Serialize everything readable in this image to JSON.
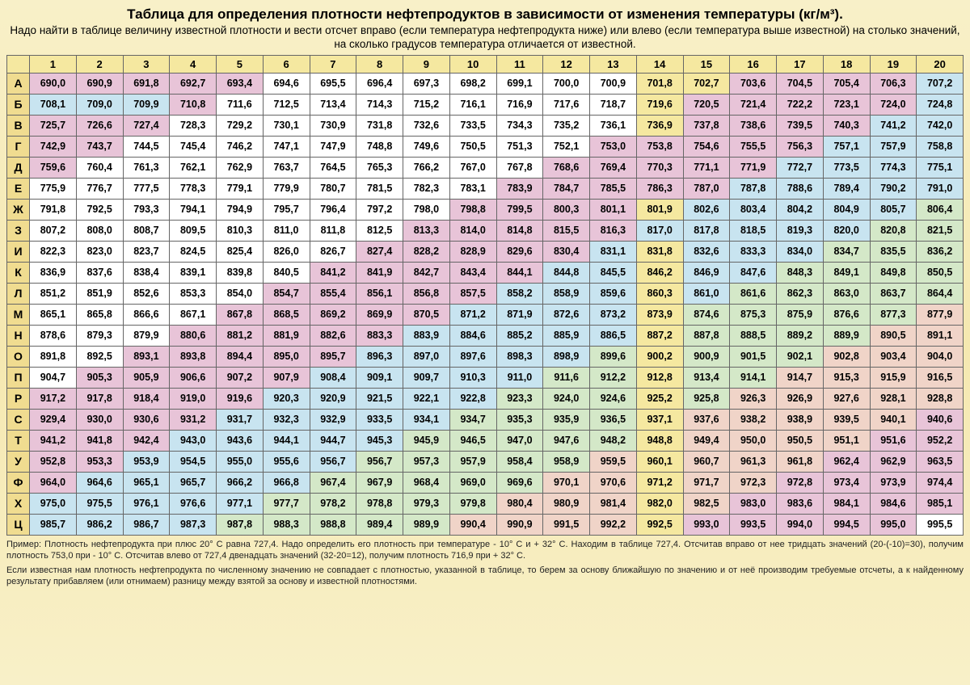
{
  "title": "Таблица для определения плотности нефтепродуктов в зависимости от изменения температуры (кг/м³).",
  "subtitle": "Надо найти в таблице величину известной плотности и вести отсчет вправо (если температура нефтепродукта ниже) или влево (если температура выше известной) на столько значений, на сколько градусов температура отличается от известной.",
  "colHeaders": [
    "1",
    "2",
    "3",
    "4",
    "5",
    "6",
    "7",
    "8",
    "9",
    "10",
    "11",
    "12",
    "13",
    "14",
    "15",
    "16",
    "17",
    "18",
    "19",
    "20"
  ],
  "rowHeaders": [
    "А",
    "Б",
    "В",
    "Г",
    "Д",
    "Е",
    "Ж",
    "З",
    "И",
    "К",
    "Л",
    "М",
    "Н",
    "О",
    "П",
    "Р",
    "С",
    "Т",
    "У",
    "Ф",
    "Х",
    "Ц"
  ],
  "colors": {
    "pink": "#e8c4d8",
    "blue": "#c8e4f0",
    "cream": "#faf4e0",
    "yellow": "#f5e8a0",
    "green": "#d4e8c8",
    "salmon": "#f0d4c8",
    "white": "#ffffff"
  },
  "rows": [
    {
      "v": [
        "690,0",
        "690,9",
        "691,8",
        "692,7",
        "693,4",
        "694,6",
        "695,5",
        "696,4",
        "697,3",
        "698,2",
        "699,1",
        "700,0",
        "700,9",
        "701,8",
        "702,7",
        "703,6",
        "704,5",
        "705,4",
        "706,3",
        "707,2"
      ],
      "c": [
        "pink",
        "pink",
        "pink",
        "pink",
        "pink",
        "white",
        "white",
        "white",
        "white",
        "white",
        "white",
        "white",
        "white",
        "yellow",
        "yellow",
        "pink",
        "pink",
        "pink",
        "pink",
        "blue"
      ]
    },
    {
      "v": [
        "708,1",
        "709,0",
        "709,9",
        "710,8",
        "711,6",
        "712,5",
        "713,4",
        "714,3",
        "715,2",
        "716,1",
        "716,9",
        "717,6",
        "718,7",
        "719,6",
        "720,5",
        "721,4",
        "722,2",
        "723,1",
        "724,0",
        "724,8"
      ],
      "c": [
        "blue",
        "blue",
        "blue",
        "pink",
        "white",
        "white",
        "white",
        "white",
        "white",
        "white",
        "white",
        "white",
        "white",
        "yellow",
        "pink",
        "pink",
        "pink",
        "pink",
        "pink",
        "blue"
      ]
    },
    {
      "v": [
        "725,7",
        "726,6",
        "727,4",
        "728,3",
        "729,2",
        "730,1",
        "730,9",
        "731,8",
        "732,6",
        "733,5",
        "734,3",
        "735,2",
        "736,1",
        "736,9",
        "737,8",
        "738,6",
        "739,5",
        "740,3",
        "741,2",
        "742,0"
      ],
      "c": [
        "pink",
        "pink",
        "pink",
        "white",
        "white",
        "white",
        "white",
        "white",
        "white",
        "white",
        "white",
        "white",
        "white",
        "yellow",
        "pink",
        "pink",
        "pink",
        "pink",
        "blue",
        "blue"
      ]
    },
    {
      "v": [
        "742,9",
        "743,7",
        "744,5",
        "745,4",
        "746,2",
        "747,1",
        "747,9",
        "748,8",
        "749,6",
        "750,5",
        "751,3",
        "752,1",
        "753,0",
        "753,8",
        "754,6",
        "755,5",
        "756,3",
        "757,1",
        "757,9",
        "758,8"
      ],
      "c": [
        "pink",
        "pink",
        "white",
        "white",
        "white",
        "white",
        "white",
        "white",
        "white",
        "white",
        "white",
        "white",
        "pink",
        "pink",
        "pink",
        "pink",
        "pink",
        "blue",
        "blue",
        "blue"
      ]
    },
    {
      "v": [
        "759,6",
        "760,4",
        "761,3",
        "762,1",
        "762,9",
        "763,7",
        "764,5",
        "765,3",
        "766,2",
        "767,0",
        "767,8",
        "768,6",
        "769,4",
        "770,3",
        "771,1",
        "771,9",
        "772,7",
        "773,5",
        "774,3",
        "775,1"
      ],
      "c": [
        "pink",
        "white",
        "white",
        "white",
        "white",
        "white",
        "white",
        "white",
        "white",
        "white",
        "white",
        "pink",
        "pink",
        "pink",
        "pink",
        "pink",
        "blue",
        "blue",
        "blue",
        "blue"
      ]
    },
    {
      "v": [
        "775,9",
        "776,7",
        "777,5",
        "778,3",
        "779,1",
        "779,9",
        "780,7",
        "781,5",
        "782,3",
        "783,1",
        "783,9",
        "784,7",
        "785,5",
        "786,3",
        "787,0",
        "787,8",
        "788,6",
        "789,4",
        "790,2",
        "791,0"
      ],
      "c": [
        "white",
        "white",
        "white",
        "white",
        "white",
        "white",
        "white",
        "white",
        "white",
        "white",
        "pink",
        "pink",
        "pink",
        "pink",
        "pink",
        "blue",
        "blue",
        "blue",
        "blue",
        "blue"
      ]
    },
    {
      "v": [
        "791,8",
        "792,5",
        "793,3",
        "794,1",
        "794,9",
        "795,7",
        "796,4",
        "797,2",
        "798,0",
        "798,8",
        "799,5",
        "800,3",
        "801,1",
        "801,9",
        "802,6",
        "803,4",
        "804,2",
        "804,9",
        "805,7",
        "806,4"
      ],
      "c": [
        "white",
        "white",
        "white",
        "white",
        "white",
        "white",
        "white",
        "white",
        "white",
        "pink",
        "pink",
        "pink",
        "pink",
        "yellow",
        "blue",
        "blue",
        "blue",
        "blue",
        "blue",
        "green"
      ]
    },
    {
      "v": [
        "807,2",
        "808,0",
        "808,7",
        "809,5",
        "810,3",
        "811,0",
        "811,8",
        "812,5",
        "813,3",
        "814,0",
        "814,8",
        "815,5",
        "816,3",
        "817,0",
        "817,8",
        "818,5",
        "819,3",
        "820,0",
        "820,8",
        "821,5"
      ],
      "c": [
        "white",
        "white",
        "white",
        "white",
        "white",
        "white",
        "white",
        "white",
        "pink",
        "pink",
        "pink",
        "pink",
        "pink",
        "blue",
        "blue",
        "blue",
        "blue",
        "blue",
        "green",
        "green"
      ]
    },
    {
      "v": [
        "822,3",
        "823,0",
        "823,7",
        "824,5",
        "825,4",
        "826,0",
        "826,7",
        "827,4",
        "828,2",
        "828,9",
        "829,6",
        "830,4",
        "831,1",
        "831,8",
        "832,6",
        "833,3",
        "834,0",
        "834,7",
        "835,5",
        "836,2"
      ],
      "c": [
        "white",
        "white",
        "white",
        "white",
        "white",
        "white",
        "white",
        "pink",
        "pink",
        "pink",
        "pink",
        "pink",
        "blue",
        "yellow",
        "blue",
        "blue",
        "blue",
        "green",
        "green",
        "green"
      ]
    },
    {
      "v": [
        "836,9",
        "837,6",
        "838,4",
        "839,1",
        "839,8",
        "840,5",
        "841,2",
        "841,9",
        "842,7",
        "843,4",
        "844,1",
        "844,8",
        "845,5",
        "846,2",
        "846,9",
        "847,6",
        "848,3",
        "849,1",
        "849,8",
        "850,5"
      ],
      "c": [
        "white",
        "white",
        "white",
        "white",
        "white",
        "white",
        "pink",
        "pink",
        "pink",
        "pink",
        "pink",
        "blue",
        "blue",
        "yellow",
        "blue",
        "blue",
        "green",
        "green",
        "green",
        "green"
      ]
    },
    {
      "v": [
        "851,2",
        "851,9",
        "852,6",
        "853,3",
        "854,0",
        "854,7",
        "855,4",
        "856,1",
        "856,8",
        "857,5",
        "858,2",
        "858,9",
        "859,6",
        "860,3",
        "861,0",
        "861,6",
        "862,3",
        "863,0",
        "863,7",
        "864,4"
      ],
      "c": [
        "white",
        "white",
        "white",
        "white",
        "white",
        "pink",
        "pink",
        "pink",
        "pink",
        "pink",
        "blue",
        "blue",
        "blue",
        "yellow",
        "blue",
        "green",
        "green",
        "green",
        "green",
        "green"
      ]
    },
    {
      "v": [
        "865,1",
        "865,8",
        "866,6",
        "867,1",
        "867,8",
        "868,5",
        "869,2",
        "869,9",
        "870,5",
        "871,2",
        "871,9",
        "872,6",
        "873,2",
        "873,9",
        "874,6",
        "875,3",
        "875,9",
        "876,6",
        "877,3",
        "877,9"
      ],
      "c": [
        "white",
        "white",
        "white",
        "white",
        "pink",
        "pink",
        "pink",
        "pink",
        "pink",
        "blue",
        "blue",
        "blue",
        "blue",
        "yellow",
        "green",
        "green",
        "green",
        "green",
        "green",
        "salmon"
      ]
    },
    {
      "v": [
        "878,6",
        "879,3",
        "879,9",
        "880,6",
        "881,2",
        "881,9",
        "882,6",
        "883,3",
        "883,9",
        "884,6",
        "885,2",
        "885,9",
        "886,5",
        "887,2",
        "887,8",
        "888,5",
        "889,2",
        "889,9",
        "890,5",
        "891,1"
      ],
      "c": [
        "white",
        "white",
        "white",
        "pink",
        "pink",
        "pink",
        "pink",
        "pink",
        "blue",
        "blue",
        "blue",
        "blue",
        "blue",
        "yellow",
        "green",
        "green",
        "green",
        "green",
        "salmon",
        "salmon"
      ]
    },
    {
      "v": [
        "891,8",
        "892,5",
        "893,1",
        "893,8",
        "894,4",
        "895,0",
        "895,7",
        "896,3",
        "897,0",
        "897,6",
        "898,3",
        "898,9",
        "899,6",
        "900,2",
        "900,9",
        "901,5",
        "902,1",
        "902,8",
        "903,4",
        "904,0"
      ],
      "c": [
        "white",
        "white",
        "pink",
        "pink",
        "pink",
        "pink",
        "pink",
        "blue",
        "blue",
        "blue",
        "blue",
        "blue",
        "green",
        "yellow",
        "green",
        "green",
        "green",
        "salmon",
        "salmon",
        "salmon"
      ]
    },
    {
      "v": [
        "904,7",
        "905,3",
        "905,9",
        "906,6",
        "907,2",
        "907,9",
        "908,4",
        "909,1",
        "909,7",
        "910,3",
        "911,0",
        "911,6",
        "912,2",
        "912,8",
        "913,4",
        "914,1",
        "914,7",
        "915,3",
        "915,9",
        "916,5"
      ],
      "c": [
        "white",
        "pink",
        "pink",
        "pink",
        "pink",
        "pink",
        "blue",
        "blue",
        "blue",
        "blue",
        "blue",
        "green",
        "green",
        "yellow",
        "green",
        "green",
        "salmon",
        "salmon",
        "salmon",
        "salmon"
      ]
    },
    {
      "v": [
        "917,2",
        "917,8",
        "918,4",
        "919,0",
        "919,6",
        "920,3",
        "920,9",
        "921,5",
        "922,1",
        "922,8",
        "923,3",
        "924,0",
        "924,6",
        "925,2",
        "925,8",
        "926,3",
        "926,9",
        "927,6",
        "928,1",
        "928,8"
      ],
      "c": [
        "pink",
        "pink",
        "pink",
        "pink",
        "pink",
        "blue",
        "blue",
        "blue",
        "blue",
        "blue",
        "green",
        "green",
        "green",
        "yellow",
        "green",
        "salmon",
        "salmon",
        "salmon",
        "salmon",
        "salmon"
      ]
    },
    {
      "v": [
        "929,4",
        "930,0",
        "930,6",
        "931,2",
        "931,7",
        "932,3",
        "932,9",
        "933,5",
        "934,1",
        "934,7",
        "935,3",
        "935,9",
        "936,5",
        "937,1",
        "937,6",
        "938,2",
        "938,9",
        "939,5",
        "940,1",
        "940,6"
      ],
      "c": [
        "pink",
        "pink",
        "pink",
        "pink",
        "blue",
        "blue",
        "blue",
        "blue",
        "blue",
        "green",
        "green",
        "green",
        "green",
        "yellow",
        "salmon",
        "salmon",
        "salmon",
        "salmon",
        "salmon",
        "pink"
      ]
    },
    {
      "v": [
        "941,2",
        "941,8",
        "942,4",
        "943,0",
        "943,6",
        "944,1",
        "944,7",
        "945,3",
        "945,9",
        "946,5",
        "947,0",
        "947,6",
        "948,2",
        "948,8",
        "949,4",
        "950,0",
        "950,5",
        "951,1",
        "951,6",
        "952,2"
      ],
      "c": [
        "pink",
        "pink",
        "pink",
        "blue",
        "blue",
        "blue",
        "blue",
        "blue",
        "green",
        "green",
        "green",
        "green",
        "green",
        "yellow",
        "salmon",
        "salmon",
        "salmon",
        "salmon",
        "pink",
        "pink"
      ]
    },
    {
      "v": [
        "952,8",
        "953,3",
        "953,9",
        "954,5",
        "955,0",
        "955,6",
        "956,7",
        "956,7",
        "957,3",
        "957,9",
        "958,4",
        "958,9",
        "959,5",
        "960,1",
        "960,7",
        "961,3",
        "961,8",
        "962,4",
        "962,9",
        "963,5"
      ],
      "c": [
        "pink",
        "pink",
        "blue",
        "blue",
        "blue",
        "blue",
        "blue",
        "green",
        "green",
        "green",
        "green",
        "green",
        "salmon",
        "yellow",
        "salmon",
        "salmon",
        "salmon",
        "pink",
        "pink",
        "pink"
      ]
    },
    {
      "v": [
        "964,0",
        "964,6",
        "965,1",
        "965,7",
        "966,2",
        "966,8",
        "967,4",
        "967,9",
        "968,4",
        "969,0",
        "969,6",
        "970,1",
        "970,6",
        "971,2",
        "971,7",
        "972,3",
        "972,8",
        "973,4",
        "973,9",
        "974,4"
      ],
      "c": [
        "pink",
        "blue",
        "blue",
        "blue",
        "blue",
        "blue",
        "green",
        "green",
        "green",
        "green",
        "green",
        "salmon",
        "salmon",
        "yellow",
        "salmon",
        "salmon",
        "pink",
        "pink",
        "pink",
        "pink"
      ]
    },
    {
      "v": [
        "975,0",
        "975,5",
        "976,1",
        "976,6",
        "977,1",
        "977,7",
        "978,2",
        "978,8",
        "979,3",
        "979,8",
        "980,4",
        "980,9",
        "981,4",
        "982,0",
        "982,5",
        "983,0",
        "983,6",
        "984,1",
        "984,6",
        "985,1"
      ],
      "c": [
        "blue",
        "blue",
        "blue",
        "blue",
        "blue",
        "green",
        "green",
        "green",
        "green",
        "green",
        "salmon",
        "salmon",
        "salmon",
        "yellow",
        "salmon",
        "pink",
        "pink",
        "pink",
        "pink",
        "pink"
      ]
    },
    {
      "v": [
        "985,7",
        "986,2",
        "986,7",
        "987,3",
        "987,8",
        "988,3",
        "988,8",
        "989,4",
        "989,9",
        "990,4",
        "990,9",
        "991,5",
        "992,2",
        "992,5",
        "993,0",
        "993,5",
        "994,0",
        "994,5",
        "995,0",
        "995,5"
      ],
      "c": [
        "blue",
        "blue",
        "blue",
        "blue",
        "green",
        "green",
        "green",
        "green",
        "green",
        "salmon",
        "salmon",
        "salmon",
        "salmon",
        "yellow",
        "pink",
        "pink",
        "pink",
        "pink",
        "pink",
        "white"
      ]
    }
  ],
  "footnote1": "Пример: Плотность нефтепродукта при плюс 20° С равна 727,4. Надо определить его плотность при температуре - 10° С и + 32° С. Находим в таблице 727,4. Отсчитав вправо от нее тридцать значений (20-(-10)=30), получим плотность 753,0 при - 10° С. Отсчитав влево от 727,4 двенадцать значений (32-20=12), получим плотность 716,9 при + 32° С.",
  "footnote2": "Если известная нам плотность нефтепродукта по численному значению не совпадает с плотностью, указанной в таблице, то берем за основу ближайшую по значению и от неё производим требуемые отсчеты, а к найденному результату прибавляем (или отнимаем) разницу между взятой за основу и известной плотностями."
}
